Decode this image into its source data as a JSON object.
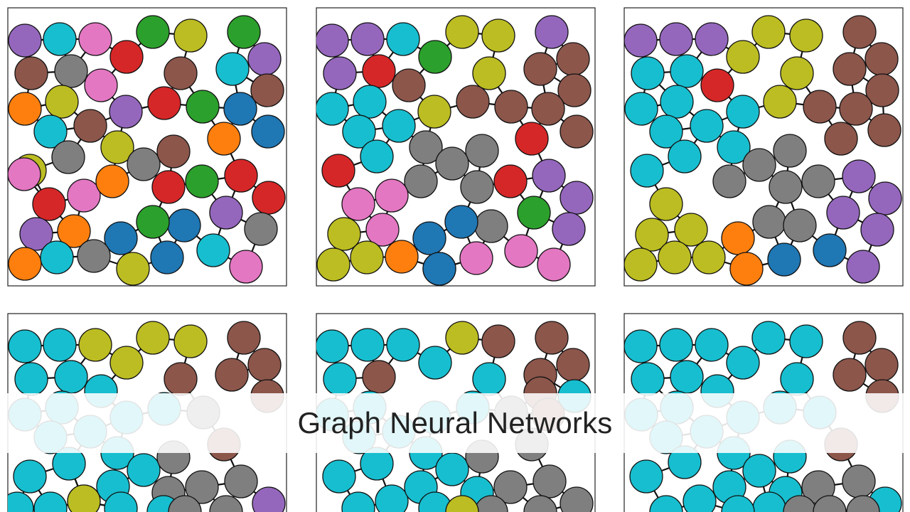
{
  "title": "Graph Neural Networks",
  "palette": {
    "purple": "#9467bd",
    "cyan": "#17becf",
    "pink": "#e377c2",
    "gray": "#7f7f7f",
    "green": "#2ca02c",
    "olive": "#bcbd22",
    "red": "#d62728",
    "brown": "#8c564b",
    "orange": "#ff7f0e",
    "blue": "#1f77b4"
  },
  "panels": [
    {
      "name": "step-1",
      "node_colors": [
        "purple",
        "cyan",
        "pink",
        "green",
        "olive",
        "green",
        "red",
        "brown",
        "gray",
        "brown",
        "pink",
        "purple",
        "orange",
        "olive",
        "cyan",
        "purple",
        "red",
        "green",
        "blue",
        "brown",
        "cyan",
        "brown",
        "olive",
        "orange",
        "blue",
        "olive",
        "gray",
        "gray",
        "brown",
        "red",
        "red",
        "pink",
        "orange",
        "green",
        "red",
        "purple",
        "red",
        "gray",
        "orange",
        "blue",
        "blue",
        "purple",
        "green",
        "orange",
        "cyan",
        "gray",
        "blue",
        "cyan",
        "olive",
        "pink",
        "pink"
      ]
    },
    {
      "name": "step-2",
      "node_colors": [
        "purple",
        "purple",
        "cyan",
        "olive",
        "olive",
        "purple",
        "green",
        "olive",
        "purple",
        "red",
        "brown",
        "brown",
        "brown",
        "brown",
        "cyan",
        "cyan",
        "olive",
        "brown",
        "brown",
        "brown",
        "cyan",
        "cyan",
        "brown",
        "gray",
        "gray",
        "red",
        "cyan",
        "red",
        "gray",
        "gray",
        "purple",
        "gray",
        "pink",
        "pink",
        "red",
        "gray",
        "purple",
        "pink",
        "blue",
        "green",
        "blue",
        "purple",
        "olive",
        "olive",
        "orange",
        "blue",
        "pink",
        "pink",
        "olive",
        "pink",
        "blue"
      ]
    },
    {
      "name": "step-3",
      "node_colors": [
        "purple",
        "purple",
        "purple",
        "olive",
        "olive",
        "brown",
        "olive",
        "cyan",
        "cyan",
        "olive",
        "brown",
        "brown",
        "red",
        "brown",
        "cyan",
        "cyan",
        "olive",
        "cyan",
        "brown",
        "brown",
        "brown",
        "cyan",
        "cyan",
        "cyan",
        "gray",
        "brown",
        "cyan",
        "gray",
        "gray",
        "gray",
        "cyan",
        "gray",
        "purple",
        "olive",
        "purple",
        "olive",
        "olive",
        "gray",
        "gray",
        "purple",
        "orange",
        "purple",
        "olive",
        "olive",
        "olive",
        "blue",
        "blue",
        "orange",
        "purple"
      ]
    },
    {
      "name": "step-4",
      "node_colors": [
        "cyan",
        "cyan",
        "olive",
        "olive",
        "olive",
        "brown",
        "olive",
        "cyan",
        "cyan",
        "brown",
        "brown",
        "brown",
        "cyan",
        "cyan",
        "cyan",
        "cyan",
        "cyan",
        "brown",
        "cyan",
        "cyan",
        "cyan",
        "gray",
        "brown",
        "cyan",
        "cyan",
        "cyan",
        "cyan",
        "cyan",
        "gray",
        "gray",
        "cyan",
        "gray",
        "gray",
        "olive",
        "purple",
        "cyan",
        "cyan",
        "cyan",
        "gray",
        "gray"
      ]
    },
    {
      "name": "step-5",
      "node_colors": [
        "cyan",
        "cyan",
        "cyan",
        "olive",
        "brown",
        "brown",
        "cyan",
        "cyan",
        "cyan",
        "brown",
        "brown",
        "brown",
        "cyan",
        "cyan",
        "cyan",
        "cyan",
        "cyan",
        "brown",
        "cyan",
        "cyan",
        "cyan",
        "gray",
        "brown",
        "cyan",
        "cyan",
        "cyan",
        "cyan",
        "cyan",
        "gray",
        "gray",
        "cyan",
        "cyan",
        "gray",
        "gray",
        "cyan",
        "gray",
        "gray",
        "olive",
        "gray"
      ]
    },
    {
      "name": "step-6",
      "node_colors": [
        "cyan",
        "cyan",
        "cyan",
        "cyan",
        "cyan",
        "brown",
        "cyan",
        "cyan",
        "cyan",
        "cyan",
        "brown",
        "brown",
        "cyan",
        "cyan",
        "cyan",
        "cyan",
        "cyan",
        "brown",
        "cyan",
        "cyan",
        "cyan",
        "cyan",
        "cyan",
        "cyan",
        "cyan",
        "cyan",
        "cyan",
        "brown",
        "cyan",
        "gray",
        "cyan",
        "cyan",
        "gray",
        "cyan",
        "cyan",
        "cyan",
        "gray",
        "gray",
        "gray"
      ]
    }
  ]
}
